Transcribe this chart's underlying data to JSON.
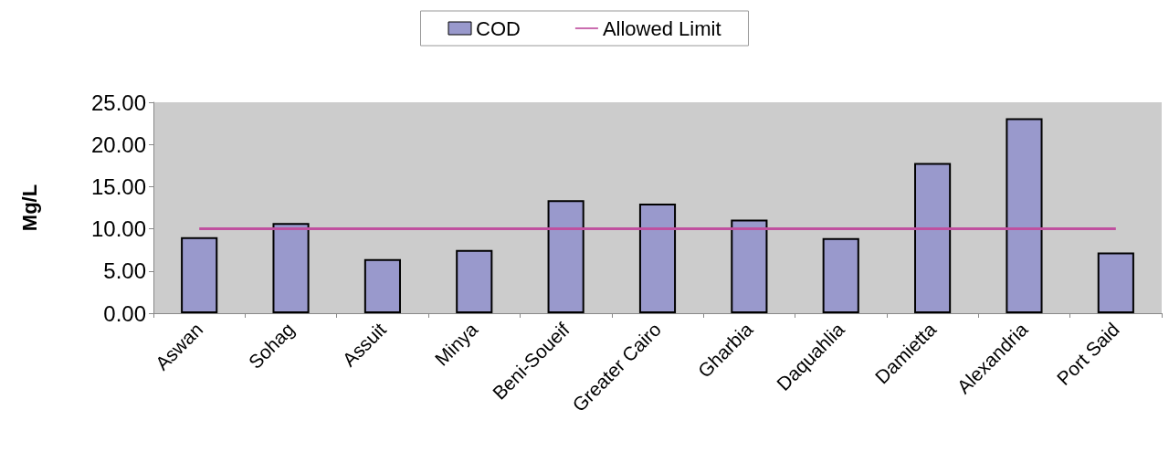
{
  "chart_data": {
    "type": "bar",
    "ylabel": "Mg/L",
    "categories": [
      "Aswan",
      "Sohag",
      "Assuit",
      "Minya",
      "Beni-Soueif",
      "Greater Cairo",
      "Gharbia",
      "Daquahlia",
      "Damietta",
      "Alexandria",
      "Port Said"
    ],
    "series": [
      {
        "name": "COD",
        "color": "#9999cc",
        "values": [
          9.0,
          10.7,
          6.4,
          7.5,
          13.4,
          13.0,
          11.1,
          8.9,
          17.8,
          23.1,
          7.2
        ]
      },
      {
        "name": "Allowed Limit",
        "type": "line",
        "color": "#c0509f",
        "values": [
          10,
          10,
          10,
          10,
          10,
          10,
          10,
          10,
          10,
          10,
          10
        ]
      }
    ],
    "ylim": [
      0,
      25
    ],
    "yticks": [
      {
        "value": 0,
        "label": "0.00"
      },
      {
        "value": 5,
        "label": "5.00"
      },
      {
        "value": 10,
        "label": "10.00"
      },
      {
        "value": 15,
        "label": "15.00"
      },
      {
        "value": 20,
        "label": "20.00"
      },
      {
        "value": 25,
        "label": "25.00"
      }
    ],
    "grid": false,
    "legend": "top",
    "marker": "none",
    "line_style": "solid"
  }
}
